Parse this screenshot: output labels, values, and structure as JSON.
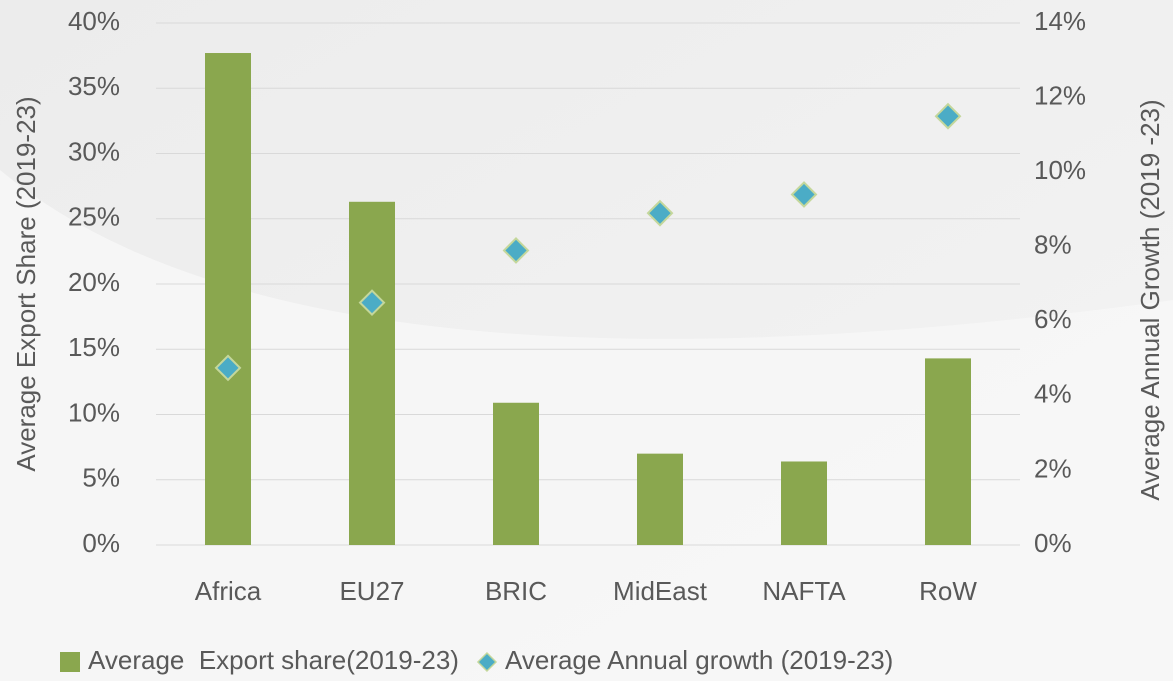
{
  "chart_data": {
    "type": "bar",
    "categories": [
      "Africa",
      "EU27",
      "BRIC",
      "MidEast",
      "NAFTA",
      "RoW"
    ],
    "series": [
      {
        "name": "Average  Export share(2019-23)",
        "type": "bar",
        "color": "#8aa74e",
        "values": [
          37.7,
          26.3,
          10.9,
          7.0,
          6.4,
          14.3
        ]
      },
      {
        "name": "Average Annual growth (2019-23)",
        "type": "scatter",
        "marker": "diamond",
        "axis": "y2",
        "color": "#4bacc6",
        "values": [
          4.75,
          6.5,
          7.9,
          8.9,
          9.4,
          11.5
        ]
      }
    ],
    "ylabel": "Average Export Share (2019-23)",
    "y2label": "Average Annual Growth (2019 -23)",
    "ylim": [
      0,
      40
    ],
    "yticks": [
      {
        "value": 0,
        "label": "0%"
      },
      {
        "value": 5,
        "label": "5%"
      },
      {
        "value": 10,
        "label": "10%"
      },
      {
        "value": 15,
        "label": "15%"
      },
      {
        "value": 20,
        "label": "20%"
      },
      {
        "value": 25,
        "label": "25%"
      },
      {
        "value": 30,
        "label": "30%"
      },
      {
        "value": 35,
        "label": "35%"
      },
      {
        "value": 40,
        "label": "40%"
      }
    ],
    "y2lim": [
      0,
      14
    ],
    "y2ticks": [
      {
        "value": 0,
        "label": "0%"
      },
      {
        "value": 2,
        "label": "2%"
      },
      {
        "value": 4,
        "label": "4%"
      },
      {
        "value": 6,
        "label": "6%"
      },
      {
        "value": 8,
        "label": "8%"
      },
      {
        "value": 10,
        "label": "10%"
      },
      {
        "value": 12,
        "label": "12%"
      },
      {
        "value": 14,
        "label": "14%"
      }
    ],
    "grid": true,
    "legend": "bottom"
  }
}
